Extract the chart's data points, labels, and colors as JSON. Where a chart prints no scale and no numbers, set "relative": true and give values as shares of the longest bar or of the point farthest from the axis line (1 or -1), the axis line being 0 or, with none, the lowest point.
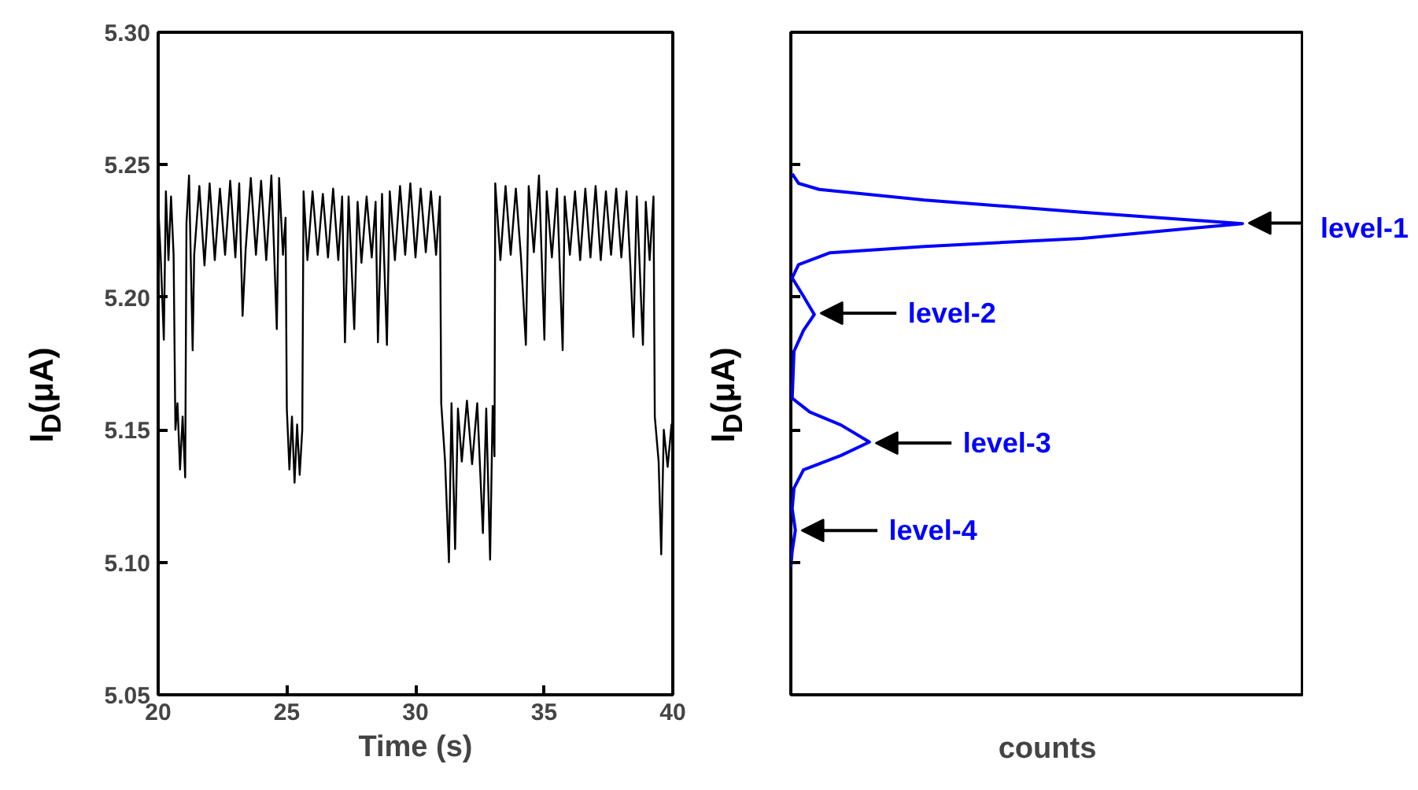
{
  "chart_data": [
    {
      "type": "line",
      "xlabel": "Time (s)",
      "ylabel": "I$_{D}$(μA)",
      "xlim": [
        20,
        40
      ],
      "xticks": [
        20,
        25,
        30,
        35,
        40
      ],
      "ylim": [
        5.05,
        5.3
      ],
      "yticks": [
        {
          "value": 5.05,
          "label": "5.05"
        },
        {
          "value": 5.1,
          "label": "5.10"
        },
        {
          "value": 5.15,
          "label": "5.15"
        },
        {
          "value": 5.2,
          "label": "5.20"
        },
        {
          "value": 5.25,
          "label": "5.25"
        },
        {
          "value": 5.3,
          "label": "5.30"
        }
      ],
      "marker": "none",
      "line_style": "solid",
      "series": [
        {
          "color": "#000000",
          "x": [
            20.0,
            20.1,
            20.22,
            20.3,
            20.4,
            20.5,
            20.6,
            20.67,
            20.75,
            20.85,
            20.95,
            21.05,
            21.1,
            21.2,
            21.34,
            21.4,
            21.6,
            21.8,
            22.0,
            22.2,
            22.4,
            22.6,
            22.8,
            23.0,
            23.15,
            23.28,
            23.4,
            23.6,
            23.8,
            24.0,
            24.2,
            24.4,
            24.5,
            24.61,
            24.7,
            24.85,
            24.95,
            25.0,
            25.1,
            25.2,
            25.3,
            25.4,
            25.5,
            25.6,
            25.65,
            25.8,
            26.0,
            26.2,
            26.4,
            26.6,
            26.8,
            27.0,
            27.15,
            27.26,
            27.4,
            27.62,
            27.75,
            27.9,
            28.1,
            28.3,
            28.45,
            28.54,
            28.7,
            28.89,
            29.0,
            29.2,
            29.4,
            29.6,
            29.8,
            30.0,
            30.2,
            30.4,
            30.6,
            30.8,
            30.95,
            31.0,
            31.15,
            31.3,
            31.4,
            31.54,
            31.65,
            31.8,
            32.0,
            32.2,
            32.4,
            32.62,
            32.75,
            32.9,
            33.0,
            33.07,
            33.1,
            33.3,
            33.5,
            33.7,
            33.9,
            34.1,
            34.29,
            34.4,
            34.6,
            34.8,
            35.01,
            35.1,
            35.3,
            35.5,
            35.72,
            35.8,
            36.0,
            36.2,
            36.4,
            36.6,
            36.8,
            37.0,
            37.2,
            37.4,
            37.6,
            37.8,
            38.0,
            38.2,
            38.35,
            38.47,
            38.6,
            38.84,
            38.95,
            39.1,
            39.25,
            39.3,
            39.45,
            39.55,
            39.65,
            39.8,
            39.95,
            40.0
          ],
          "values": [
            5.235,
            5.215,
            5.184,
            5.24,
            5.214,
            5.238,
            5.216,
            5.15,
            5.16,
            5.135,
            5.155,
            5.132,
            5.228,
            5.246,
            5.18,
            5.216,
            5.242,
            5.212,
            5.243,
            5.214,
            5.241,
            5.216,
            5.244,
            5.215,
            5.243,
            5.193,
            5.218,
            5.245,
            5.216,
            5.244,
            5.214,
            5.246,
            5.219,
            5.188,
            5.245,
            5.216,
            5.23,
            5.158,
            5.135,
            5.155,
            5.13,
            5.152,
            5.133,
            5.15,
            5.24,
            5.214,
            5.24,
            5.216,
            5.239,
            5.215,
            5.241,
            5.214,
            5.238,
            5.183,
            5.238,
            5.188,
            5.236,
            5.213,
            5.238,
            5.215,
            5.236,
            5.183,
            5.239,
            5.182,
            5.24,
            5.214,
            5.242,
            5.216,
            5.243,
            5.215,
            5.241,
            5.217,
            5.24,
            5.216,
            5.238,
            5.16,
            5.138,
            5.1,
            5.16,
            5.105,
            5.158,
            5.138,
            5.161,
            5.137,
            5.16,
            5.111,
            5.158,
            5.101,
            5.159,
            5.14,
            5.243,
            5.214,
            5.242,
            5.216,
            5.241,
            5.215,
            5.182,
            5.242,
            5.217,
            5.246,
            5.184,
            5.24,
            5.215,
            5.241,
            5.18,
            5.238,
            5.216,
            5.24,
            5.214,
            5.241,
            5.215,
            5.242,
            5.214,
            5.24,
            5.216,
            5.241,
            5.215,
            5.24,
            5.212,
            5.185,
            5.238,
            5.182,
            5.236,
            5.214,
            5.238,
            5.155,
            5.138,
            5.103,
            5.15,
            5.136,
            5.152,
            5.145
          ]
        }
      ]
    },
    {
      "type": "line",
      "orientation": "horizontal",
      "relative": true,
      "xlabel": "counts",
      "ylabel": "I$_{D}$(μA)",
      "ylim": [
        5.05,
        5.3
      ],
      "yticks": [
        5.1,
        5.15,
        5.2,
        5.25
      ],
      "tick_labels": false,
      "marker": "none",
      "line_style": "solid",
      "series": [
        {
          "color": "#0000ff",
          "x": [
            5.2466,
            5.243,
            5.2407,
            5.2367,
            5.2321,
            5.2278,
            5.2222,
            5.2192,
            5.2168,
            5.2123,
            5.2073,
            5.2004,
            5.1935,
            5.1875,
            5.1796,
            5.1619,
            5.1567,
            5.1518,
            5.1454,
            5.1403,
            5.1349,
            5.128,
            5.1202,
            5.1121,
            5.1042,
            5.0982
          ],
          "values": [
            0.003,
            0.017,
            0.063,
            0.296,
            0.645,
            1.0,
            0.645,
            0.296,
            0.087,
            0.017,
            0.003,
            0.028,
            0.052,
            0.028,
            0.007,
            0.003,
            0.042,
            0.111,
            0.174,
            0.111,
            0.028,
            0.007,
            0.003,
            0.01,
            0.003,
            0.0
          ]
        }
      ],
      "annotations": [
        {
          "text": "level-1",
          "x": 1.0,
          "y": 5.228
        },
        {
          "text": "level-2",
          "x": 0.052,
          "y": 5.194
        },
        {
          "text": "level-3",
          "x": 0.174,
          "y": 5.145
        },
        {
          "text": "level-4",
          "x": 0.01,
          "y": 5.112
        }
      ]
    }
  ]
}
